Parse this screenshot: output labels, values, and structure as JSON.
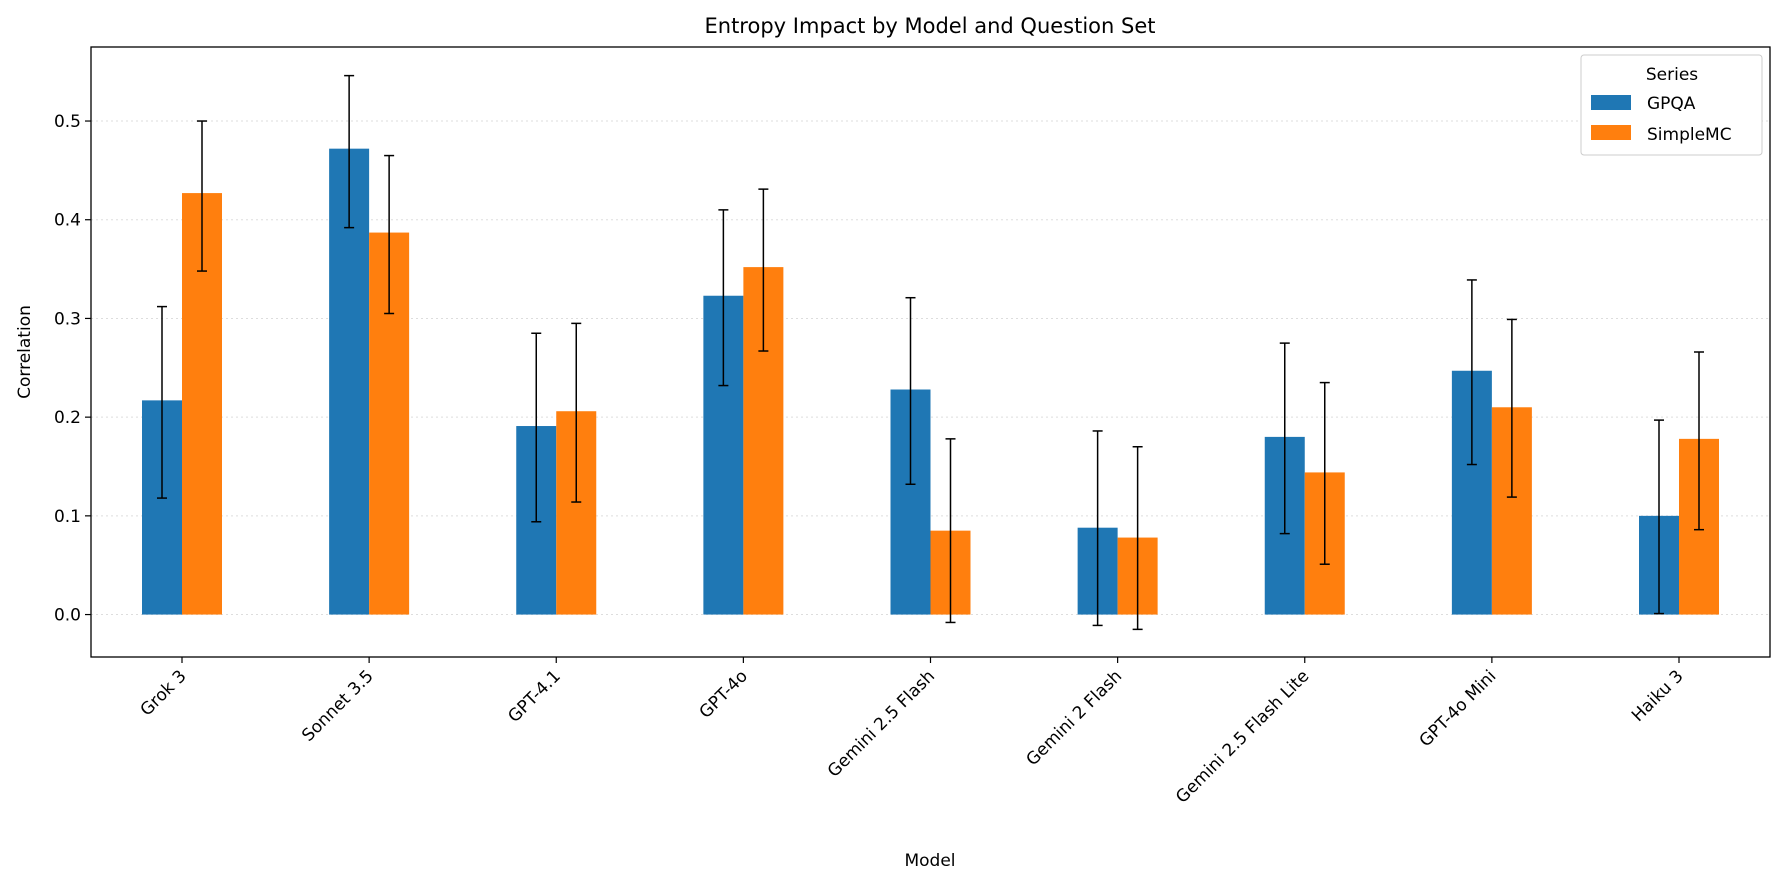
{
  "chart_data": {
    "type": "bar",
    "title": "Entropy Impact by Model and Question Set",
    "xlabel": "Model",
    "ylabel": "Correlation",
    "categories": [
      "Grok 3",
      "Sonnet 3.5",
      "GPT-4.1",
      "GPT-4o",
      "Gemini 2.5 Flash",
      "Gemini 2 Flash",
      "Gemini 2.5 Flash Lite",
      "GPT-4o Mini",
      "Haiku 3"
    ],
    "series": [
      {
        "name": "GPQA",
        "color": "#1f77b4",
        "values": [
          0.217,
          0.472,
          0.191,
          0.323,
          0.228,
          0.088,
          0.18,
          0.247,
          0.1
        ],
        "error_low": [
          0.118,
          0.392,
          0.094,
          0.232,
          0.132,
          -0.011,
          0.082,
          0.152,
          0.001
        ],
        "error_high": [
          0.312,
          0.546,
          0.285,
          0.41,
          0.321,
          0.186,
          0.275,
          0.339,
          0.197
        ]
      },
      {
        "name": "SimpleMC",
        "color": "#ff7f0e",
        "values": [
          0.427,
          0.387,
          0.206,
          0.352,
          0.085,
          0.078,
          0.144,
          0.21,
          0.178
        ],
        "error_low": [
          0.348,
          0.305,
          0.114,
          0.267,
          -0.008,
          -0.015,
          0.051,
          0.119,
          0.086
        ],
        "error_high": [
          0.5,
          0.465,
          0.295,
          0.431,
          0.178,
          0.17,
          0.235,
          0.299,
          0.266
        ]
      }
    ],
    "ylim": [
      -0.043,
      0.575
    ],
    "yticks": [
      "0.0",
      "0.1",
      "0.2",
      "0.3",
      "0.4",
      "0.5"
    ],
    "grid": true,
    "legend": {
      "title": "Series",
      "position": "top-right"
    }
  }
}
